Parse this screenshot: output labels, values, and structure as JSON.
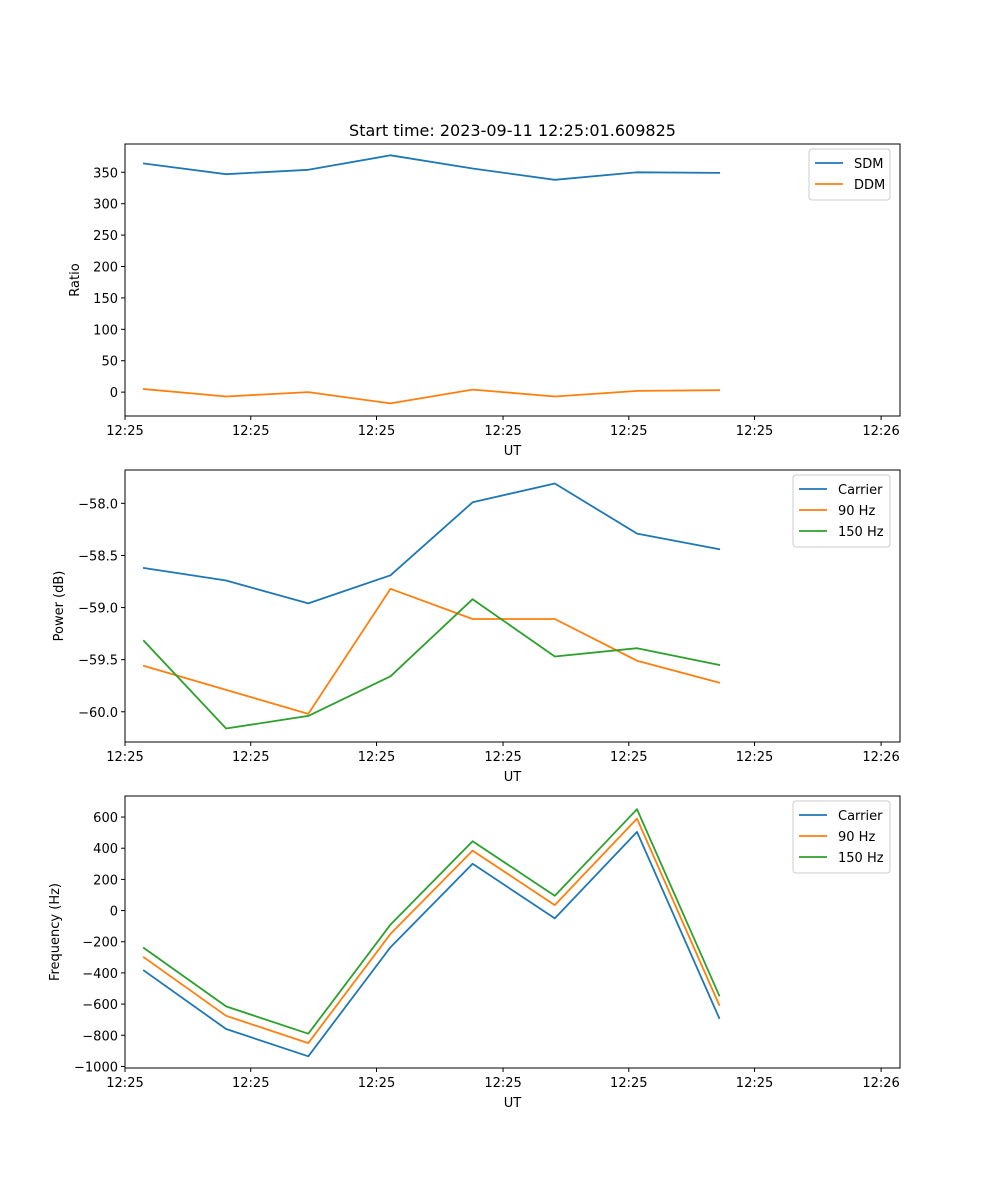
{
  "chart_data": [
    {
      "type": "line",
      "title": "Start time: 2023-09-11 12:25:01.609825",
      "xlabel": "UT",
      "ylabel": "Ratio",
      "x": [
        1,
        2,
        3,
        4,
        5,
        6,
        7,
        8
      ],
      "xlim": [
        0.77,
        10.2
      ],
      "x_ticks": [
        {
          "x": 0.77,
          "label": "12:25"
        },
        {
          "x": 2.3,
          "label": "12:25"
        },
        {
          "x": 3.83,
          "label": "12:25"
        },
        {
          "x": 5.37,
          "label": "12:25"
        },
        {
          "x": 6.9,
          "label": "12:25"
        },
        {
          "x": 8.43,
          "label": "12:25"
        },
        {
          "x": 9.97,
          "label": "12:26"
        }
      ],
      "ylim": [
        -38,
        395
      ],
      "y_ticks": [
        0,
        50,
        100,
        150,
        200,
        250,
        300,
        350
      ],
      "legend": "top-right",
      "series": [
        {
          "name": "SDM",
          "color": "#1f77b4",
          "values": [
            364,
            347,
            354,
            377,
            356,
            338,
            350,
            349
          ]
        },
        {
          "name": "DDM",
          "color": "#ff7f0e",
          "values": [
            5,
            -7,
            0,
            -18,
            4,
            -7,
            2,
            3
          ]
        }
      ]
    },
    {
      "type": "line",
      "xlabel": "UT",
      "ylabel": "Power (dB)",
      "x": [
        1,
        2,
        3,
        4,
        5,
        6,
        7,
        8
      ],
      "xlim": [
        0.77,
        10.2
      ],
      "x_ticks": [
        {
          "x": 0.77,
          "label": "12:25"
        },
        {
          "x": 2.3,
          "label": "12:25"
        },
        {
          "x": 3.83,
          "label": "12:25"
        },
        {
          "x": 5.37,
          "label": "12:25"
        },
        {
          "x": 6.9,
          "label": "12:25"
        },
        {
          "x": 8.43,
          "label": "12:25"
        },
        {
          "x": 9.97,
          "label": "12:26"
        }
      ],
      "ylim": [
        -60.29,
        -57.68
      ],
      "y_ticks": [
        -60.0,
        -59.5,
        -59.0,
        -58.5,
        -58.0
      ],
      "y_tick_labels": [
        "−60.0",
        "−59.5",
        "−59.0",
        "−58.5",
        "−58.0"
      ],
      "legend": "top-right",
      "series": [
        {
          "name": "Carrier",
          "color": "#1f77b4",
          "values": [
            -58.62,
            -58.74,
            -58.96,
            -58.69,
            -57.99,
            -57.81,
            -58.29,
            -58.44
          ]
        },
        {
          "name": "90 Hz",
          "color": "#ff7f0e",
          "values": [
            -59.56,
            -59.79,
            -60.02,
            -58.82,
            -59.11,
            -59.11,
            -59.51,
            -59.72
          ]
        },
        {
          "name": "150 Hz",
          "color": "#2ca02c",
          "values": [
            -59.32,
            -60.16,
            -60.04,
            -59.66,
            -58.92,
            -59.47,
            -59.39,
            -59.55
          ]
        }
      ]
    },
    {
      "type": "line",
      "xlabel": "UT",
      "ylabel": "Frequency (Hz)",
      "x": [
        1,
        2,
        3,
        4,
        5,
        6,
        7,
        8
      ],
      "xlim": [
        0.77,
        10.2
      ],
      "x_ticks": [
        {
          "x": 0.77,
          "label": "12:25"
        },
        {
          "x": 2.3,
          "label": "12:25"
        },
        {
          "x": 3.83,
          "label": "12:25"
        },
        {
          "x": 5.37,
          "label": "12:25"
        },
        {
          "x": 6.9,
          "label": "12:25"
        },
        {
          "x": 8.43,
          "label": "12:25"
        },
        {
          "x": 9.97,
          "label": "12:26"
        }
      ],
      "ylim": [
        -1010,
        735
      ],
      "y_ticks": [
        -1000,
        -800,
        -600,
        -400,
        -200,
        0,
        200,
        400,
        600
      ],
      "y_tick_labels": [
        "−1000",
        "−800",
        "−600",
        "−400",
        "−200",
        "0",
        "200",
        "400",
        "600"
      ],
      "legend": "top-right",
      "series": [
        {
          "name": "Carrier",
          "color": "#1f77b4",
          "values": [
            -385,
            -760,
            -935,
            -235,
            300,
            -50,
            505,
            -690
          ]
        },
        {
          "name": "90 Hz",
          "color": "#ff7f0e",
          "values": [
            -300,
            -675,
            -850,
            -150,
            385,
            35,
            590,
            -605
          ]
        },
        {
          "name": "150 Hz",
          "color": "#2ca02c",
          "values": [
            -240,
            -615,
            -790,
            -90,
            445,
            95,
            650,
            -545
          ]
        }
      ]
    }
  ]
}
